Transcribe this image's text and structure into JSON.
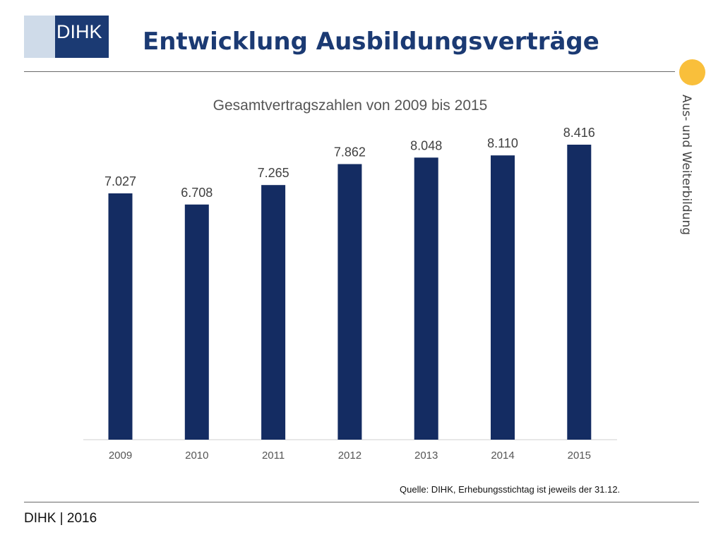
{
  "header": {
    "logo_text": "DIHK",
    "title": "Entwicklung Ausbildungsverträge"
  },
  "side_label": "Aus- und Weiterbildung",
  "colors": {
    "brand": "#1b3a73",
    "bar": "#142c62",
    "logo_light": "#cfdbe9",
    "accent_dot": "#f9bf3b"
  },
  "chart_data": {
    "type": "bar",
    "title": "Gesamtvertragszahlen von 2009 bis 2015",
    "categories": [
      "2009",
      "2010",
      "2011",
      "2012",
      "2013",
      "2014",
      "2015"
    ],
    "values": [
      7027,
      6708,
      7265,
      7862,
      8048,
      8110,
      8416
    ],
    "data_labels": [
      "7.027",
      "6.708",
      "7.265",
      "7.862",
      "8.048",
      "8.110",
      "8.416"
    ],
    "xlabel": "",
    "ylabel": "",
    "ylim": [
      0,
      9000
    ],
    "grid": false,
    "legend": "none"
  },
  "source": "Quelle: DIHK, Erhebungsstichtag ist jeweils der 31.12.",
  "footer": "DIHK | 2016"
}
